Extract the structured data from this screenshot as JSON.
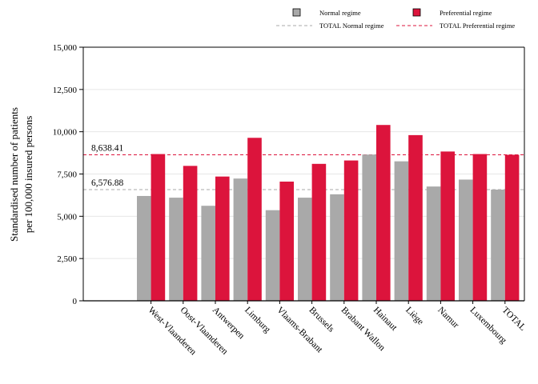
{
  "chart_data": {
    "type": "bar",
    "title": "",
    "ylabel_line1": "Standardised number of patients",
    "ylabel_line2": "per 100,000 insured persons",
    "xlabel": "",
    "ylim": [
      0,
      15000
    ],
    "yticks": [
      0,
      2500,
      5000,
      7500,
      10000,
      12500,
      15000
    ],
    "ytick_labels": [
      "0",
      "2,500",
      "5,000",
      "7,500",
      "10,000",
      "12,500",
      "15,000"
    ],
    "grid": "horizontal",
    "legend_position": "top-right",
    "categories": [
      "West-Vlaanderen",
      "Oost-Vlaanderen",
      "Antwerpen",
      "Limburg",
      "Vlaams-Brabant",
      "Brussels",
      "Brabant Wallon",
      "Hainaut",
      "Liège",
      "Namur",
      "Luxembourg",
      "TOTAL"
    ],
    "series": [
      {
        "name": "Normal regime",
        "color": "#a9a9a9",
        "values": [
          6200,
          6100,
          5620,
          7230,
          5360,
          6100,
          6300,
          8650,
          8250,
          6760,
          7170,
          6576.88
        ]
      },
      {
        "name": "Preferential regime",
        "color": "#dc143c",
        "values": [
          8680,
          7980,
          7350,
          9640,
          7050,
          8100,
          8300,
          10400,
          9800,
          8830,
          8680,
          8638.41
        ]
      }
    ],
    "reference_lines": [
      {
        "name": "TOTAL Normal regime",
        "value": 6576.88,
        "label": "6,576.88",
        "color": "#a9a9a9"
      },
      {
        "name": "TOTAL Preferential regime",
        "value": 8638.41,
        "label": "8,638.41",
        "color": "#dc143c"
      }
    ]
  }
}
